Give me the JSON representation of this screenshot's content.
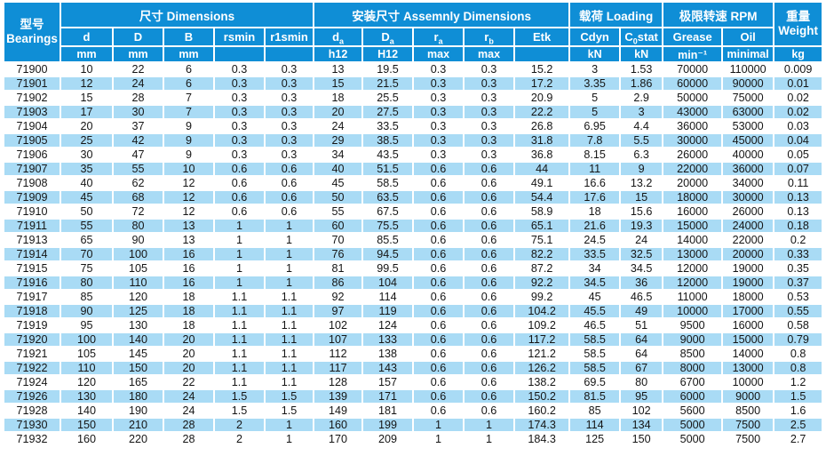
{
  "colors": {
    "header_blue": "#0f8ed6",
    "stripe_blue": "#a9dbf5",
    "text_dark": "#151515"
  },
  "table": {
    "bearings_header": {
      "zh": "型号",
      "en": "Bearings"
    },
    "groups": [
      {
        "label": "尺寸 Dimensions",
        "colspan": 5
      },
      {
        "label": "安装尺寸 Assemnly Dimensions",
        "colspan": 5
      },
      {
        "label": "载荷 Loading",
        "colspan": 2
      },
      {
        "label": "极限转速 RPM",
        "colspan": 2
      }
    ],
    "weight_header": {
      "zh": "重量",
      "en": "Weight",
      "unit": "kg"
    },
    "columns": [
      {
        "base": "d",
        "sub": "",
        "suffix": "",
        "unit": "mm"
      },
      {
        "base": "D",
        "sub": "",
        "suffix": "",
        "unit": "mm"
      },
      {
        "base": "B",
        "sub": "",
        "suffix": "",
        "unit": "mm"
      },
      {
        "base": "rsmin",
        "sub": "",
        "suffix": "",
        "unit": ""
      },
      {
        "base": "r1smin",
        "sub": "",
        "suffix": "",
        "unit": ""
      },
      {
        "base": "d",
        "sub": "a",
        "suffix": "",
        "unit": "h12"
      },
      {
        "base": "D",
        "sub": "a",
        "suffix": "",
        "unit": "H12"
      },
      {
        "base": "r",
        "sub": "a",
        "suffix": "",
        "unit": "max"
      },
      {
        "base": "r",
        "sub": "b",
        "suffix": "",
        "unit": "max"
      },
      {
        "base": "Etk",
        "sub": "",
        "suffix": "",
        "unit": ""
      },
      {
        "base": "Cdyn",
        "sub": "",
        "suffix": "",
        "unit": "kN"
      },
      {
        "base": "C",
        "sub": "0",
        "suffix": "stat",
        "unit": "kN"
      },
      {
        "base": "Grease",
        "sub": "",
        "suffix": "",
        "unit": "min⁻¹"
      },
      {
        "base": "Oil",
        "sub": "",
        "suffix": "",
        "unit": "minimal"
      }
    ],
    "rows": [
      [
        "71900",
        10,
        22,
        6,
        0.3,
        0.3,
        13,
        19.5,
        0.3,
        0.3,
        15.2,
        3,
        1.53,
        70000,
        110000,
        0.009
      ],
      [
        "71901",
        12,
        24,
        6,
        0.3,
        0.3,
        15,
        21.5,
        0.3,
        0.3,
        17.2,
        3.35,
        1.86,
        60000,
        90000,
        0.01
      ],
      [
        "71902",
        15,
        28,
        7,
        0.3,
        0.3,
        18,
        25.5,
        0.3,
        0.3,
        20.9,
        5,
        2.9,
        50000,
        75000,
        0.02
      ],
      [
        "71903",
        17,
        30,
        7,
        0.3,
        0.3,
        20,
        27.5,
        0.3,
        0.3,
        22.2,
        5,
        3,
        43000,
        63000,
        0.02
      ],
      [
        "71904",
        20,
        37,
        9,
        0.3,
        0.3,
        24,
        33.5,
        0.3,
        0.3,
        26.8,
        6.95,
        4.4,
        36000,
        53000,
        0.03
      ],
      [
        "71905",
        25,
        42,
        9,
        0.3,
        0.3,
        29,
        38.5,
        0.3,
        0.3,
        31.8,
        7.8,
        5.5,
        30000,
        45000,
        0.04
      ],
      [
        "71906",
        30,
        47,
        9,
        0.3,
        0.3,
        34,
        43.5,
        0.3,
        0.3,
        36.8,
        8.15,
        6.3,
        26000,
        40000,
        0.05
      ],
      [
        "71907",
        35,
        55,
        10,
        0.6,
        0.6,
        40,
        51.5,
        0.6,
        0.6,
        44,
        11,
        9,
        22000,
        36000,
        0.07
      ],
      [
        "71908",
        40,
        62,
        12,
        0.6,
        0.6,
        45,
        58.5,
        0.6,
        0.6,
        49.1,
        16.6,
        13.2,
        20000,
        34000,
        0.11
      ],
      [
        "71909",
        45,
        68,
        12,
        0.6,
        0.6,
        50,
        63.5,
        0.6,
        0.6,
        54.4,
        17.6,
        15,
        18000,
        30000,
        0.13
      ],
      [
        "71910",
        50,
        72,
        12,
        0.6,
        0.6,
        55,
        67.5,
        0.6,
        0.6,
        58.9,
        18,
        15.6,
        16000,
        26000,
        0.13
      ],
      [
        "71911",
        55,
        80,
        13,
        1,
        1,
        60,
        75.5,
        0.6,
        0.6,
        65.1,
        21.6,
        19.3,
        15000,
        24000,
        0.18
      ],
      [
        "71913",
        65,
        90,
        13,
        1,
        1,
        70,
        85.5,
        0.6,
        0.6,
        75.1,
        24.5,
        24,
        14000,
        22000,
        0.2
      ],
      [
        "71914",
        70,
        100,
        16,
        1,
        1,
        76,
        94.5,
        0.6,
        0.6,
        82.2,
        33.5,
        32.5,
        13000,
        20000,
        0.33
      ],
      [
        "71915",
        75,
        105,
        16,
        1,
        1,
        81,
        99.5,
        0.6,
        0.6,
        87.2,
        34,
        34.5,
        12000,
        19000,
        0.35
      ],
      [
        "71916",
        80,
        110,
        16,
        1,
        1,
        86,
        104,
        0.6,
        0.6,
        92.2,
        34.5,
        36,
        12000,
        19000,
        0.37
      ],
      [
        "71917",
        85,
        120,
        18,
        1.1,
        1.1,
        92,
        114,
        0.6,
        0.6,
        99.2,
        45,
        46.5,
        11000,
        18000,
        0.53
      ],
      [
        "71918",
        90,
        125,
        18,
        1.1,
        1.1,
        97,
        119,
        0.6,
        0.6,
        104.2,
        45.5,
        49,
        10000,
        17000,
        0.55
      ],
      [
        "71919",
        95,
        130,
        18,
        1.1,
        1.1,
        102,
        124,
        0.6,
        0.6,
        109.2,
        46.5,
        51,
        9500,
        16000,
        0.58
      ],
      [
        "71920",
        100,
        140,
        20,
        1.1,
        1.1,
        107,
        133,
        0.6,
        0.6,
        117.2,
        58.5,
        64,
        9000,
        15000,
        0.79
      ],
      [
        "71921",
        105,
        145,
        20,
        1.1,
        1.1,
        112,
        138,
        0.6,
        0.6,
        121.2,
        58.5,
        64,
        8500,
        14000,
        0.8
      ],
      [
        "71922",
        110,
        150,
        20,
        1.1,
        1.1,
        117,
        143,
        0.6,
        0.6,
        126.2,
        58.5,
        67,
        8000,
        13000,
        0.8
      ],
      [
        "71924",
        120,
        165,
        22,
        1.1,
        1.1,
        128,
        157,
        0.6,
        0.6,
        138.2,
        69.5,
        80,
        6700,
        10000,
        1.2
      ],
      [
        "71926",
        130,
        180,
        24,
        1.5,
        1.5,
        139,
        171,
        0.6,
        0.6,
        150.2,
        81.5,
        95,
        6000,
        9000,
        1.5
      ],
      [
        "71928",
        140,
        190,
        24,
        1.5,
        1.5,
        149,
        181,
        0.6,
        0.6,
        160.2,
        85,
        102,
        5600,
        8500,
        1.6
      ],
      [
        "71930",
        150,
        210,
        28,
        2,
        1,
        160,
        199,
        1,
        1,
        174.3,
        114,
        134,
        5000,
        7500,
        2.5
      ],
      [
        "71932",
        160,
        220,
        28,
        2,
        1,
        170,
        209,
        1,
        1,
        184.3,
        125,
        150,
        5000,
        7500,
        2.7
      ]
    ]
  }
}
